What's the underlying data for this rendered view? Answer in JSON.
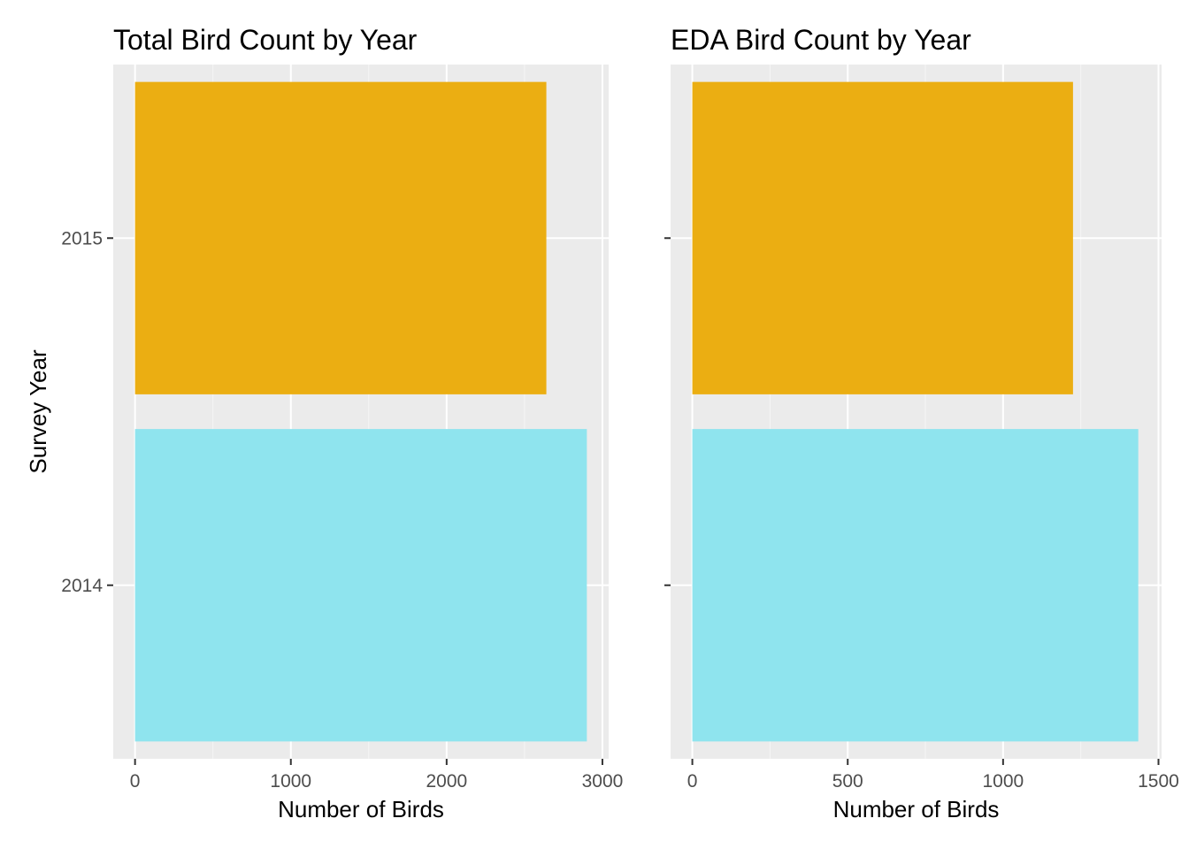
{
  "chart_data": [
    {
      "type": "bar",
      "orientation": "horizontal",
      "title": "Total Bird Count by Year",
      "xlabel": "Number of Birds",
      "ylabel": "Survey Year",
      "categories": [
        "2014",
        "2015"
      ],
      "values": [
        2900,
        2640
      ],
      "colors": [
        "#8fe4ee",
        "#ebae12"
      ],
      "xlim": [
        -140,
        3040
      ],
      "xticks": [
        0,
        1000,
        2000,
        3000
      ],
      "xtick_labels": [
        "0",
        "1000",
        "2000",
        "3000"
      ],
      "grid": true,
      "legend": "none",
      "show_y_tick_labels": true
    },
    {
      "type": "bar",
      "orientation": "horizontal",
      "title": "EDA Bird Count by Year",
      "xlabel": "Number of Birds",
      "ylabel": "",
      "categories": [
        "2014",
        "2015"
      ],
      "values": [
        1435,
        1225
      ],
      "colors": [
        "#8fe4ee",
        "#ebae12"
      ],
      "xlim": [
        -70,
        1510
      ],
      "xticks": [
        0,
        500,
        1000,
        1500
      ],
      "xtick_labels": [
        "0",
        "500",
        "1000",
        "1500"
      ],
      "grid": true,
      "legend": "none",
      "show_y_tick_labels": false
    }
  ],
  "colors": {
    "panel_background": "#ebebeb",
    "grid_major": "#ffffff",
    "grid_minor": "#f5f5f5",
    "tick": "#333333"
  }
}
